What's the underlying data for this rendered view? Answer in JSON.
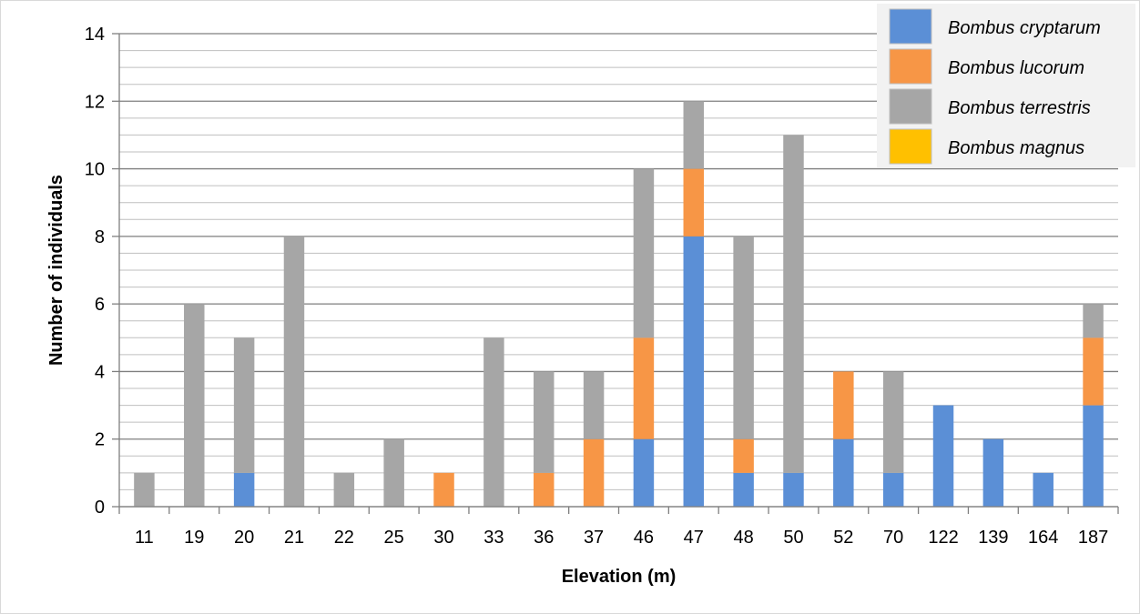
{
  "chart_data": {
    "type": "bar",
    "stacked": true,
    "title": "",
    "xlabel": "Elevation (m)",
    "ylabel": "Number of individuals",
    "ylim": [
      0,
      14
    ],
    "y_major_ticks": [
      0,
      2,
      4,
      6,
      8,
      10,
      12,
      14
    ],
    "y_minor_step": 0.5,
    "grid": true,
    "legend_position": "top-right",
    "categories": [
      "11",
      "19",
      "20",
      "21",
      "22",
      "25",
      "30",
      "33",
      "36",
      "37",
      "46",
      "47",
      "48",
      "50",
      "52",
      "70",
      "122",
      "139",
      "164",
      "187"
    ],
    "series": [
      {
        "name": "Bombus cryptarum",
        "color": "#5B8FD6",
        "values": [
          0,
          0,
          1,
          0,
          0,
          0,
          0,
          0,
          0,
          0,
          2,
          8,
          1,
          1,
          2,
          1,
          3,
          2,
          1,
          3
        ]
      },
      {
        "name": "Bombus lucorum",
        "color": "#F79646",
        "values": [
          0,
          0,
          0,
          0,
          0,
          0,
          1,
          0,
          1,
          2,
          3,
          2,
          1,
          0,
          2,
          0,
          0,
          0,
          0,
          2
        ]
      },
      {
        "name": "Bombus terrestris",
        "color": "#A6A6A6",
        "values": [
          1,
          6,
          4,
          8,
          1,
          2,
          0,
          5,
          3,
          2,
          5,
          2,
          6,
          10,
          0,
          3,
          0,
          0,
          0,
          1
        ]
      },
      {
        "name": "Bombus magnus",
        "color": "#FFC000",
        "values": [
          0,
          0,
          0,
          0,
          0,
          0,
          0,
          0,
          0,
          0,
          0,
          0,
          0,
          0,
          0,
          0,
          0,
          0,
          0,
          0
        ]
      }
    ]
  }
}
